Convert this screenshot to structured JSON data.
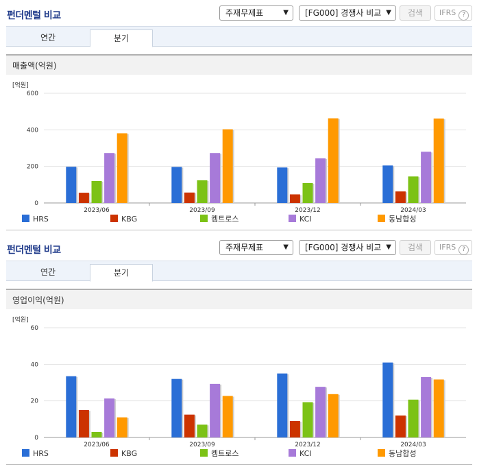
{
  "panels": [
    {
      "title": "펀더멘털 비교",
      "select_statement": "주재무제표",
      "select_compare": "[FG000] 경쟁사 비교",
      "search_label": "검색",
      "ifrs_label": "IFRS",
      "help_label": "?",
      "tabs": [
        "연간",
        "분기"
      ],
      "active_tab": 1,
      "metric_label": "매출액(억원)",
      "unit_label": "[억원]"
    },
    {
      "title": "펀더멘털 비교",
      "select_statement": "주재무제표",
      "select_compare": "[FG000] 경쟁사 비교",
      "search_label": "검색",
      "ifrs_label": "IFRS",
      "help_label": "?",
      "tabs": [
        "연간",
        "분기"
      ],
      "active_tab": 1,
      "metric_label": "영업이익(억원)",
      "unit_label": "[억원]"
    }
  ],
  "chart_data": [
    {
      "type": "bar",
      "categories": [
        "2023/06",
        "2023/09",
        "2023/12",
        "2024/03"
      ],
      "ylim": [
        0,
        600
      ],
      "yticks": [
        0,
        200,
        400,
        600
      ],
      "ylabel": "[억원]",
      "grid": true,
      "legend": "bottom",
      "series": [
        {
          "name": "HRS",
          "color": "#2a6ed6",
          "values": [
            198,
            197,
            194,
            205
          ]
        },
        {
          "name": "KBG",
          "color": "#cc3300",
          "values": [
            56,
            57,
            47,
            63
          ]
        },
        {
          "name": "켐트로스",
          "color": "#7cc216",
          "values": [
            120,
            124,
            109,
            145
          ]
        },
        {
          "name": "KCI",
          "color": "#a77ad9",
          "values": [
            273,
            273,
            244,
            280
          ]
        },
        {
          "name": "동남합성",
          "color": "#ff9900",
          "values": [
            381,
            403,
            463,
            462
          ]
        }
      ]
    },
    {
      "type": "bar",
      "categories": [
        "2023/06",
        "2023/09",
        "2023/12",
        "2024/03"
      ],
      "ylim": [
        0,
        60
      ],
      "yticks": [
        0,
        20,
        40,
        60
      ],
      "ylabel": "[억원]",
      "grid": true,
      "legend": "bottom",
      "series": [
        {
          "name": "HRS",
          "color": "#2a6ed6",
          "values": [
            33.5,
            32,
            35,
            41
          ]
        },
        {
          "name": "KBG",
          "color": "#cc3300",
          "values": [
            15,
            12.5,
            9,
            12
          ]
        },
        {
          "name": "켐트로스",
          "color": "#7cc216",
          "values": [
            3,
            7,
            19.3,
            20.7
          ]
        },
        {
          "name": "KCI",
          "color": "#a77ad9",
          "values": [
            21.3,
            29.3,
            27.7,
            33
          ]
        },
        {
          "name": "동남합성",
          "color": "#ff9900",
          "values": [
            11,
            22.7,
            23.7,
            31.7
          ]
        }
      ]
    }
  ]
}
